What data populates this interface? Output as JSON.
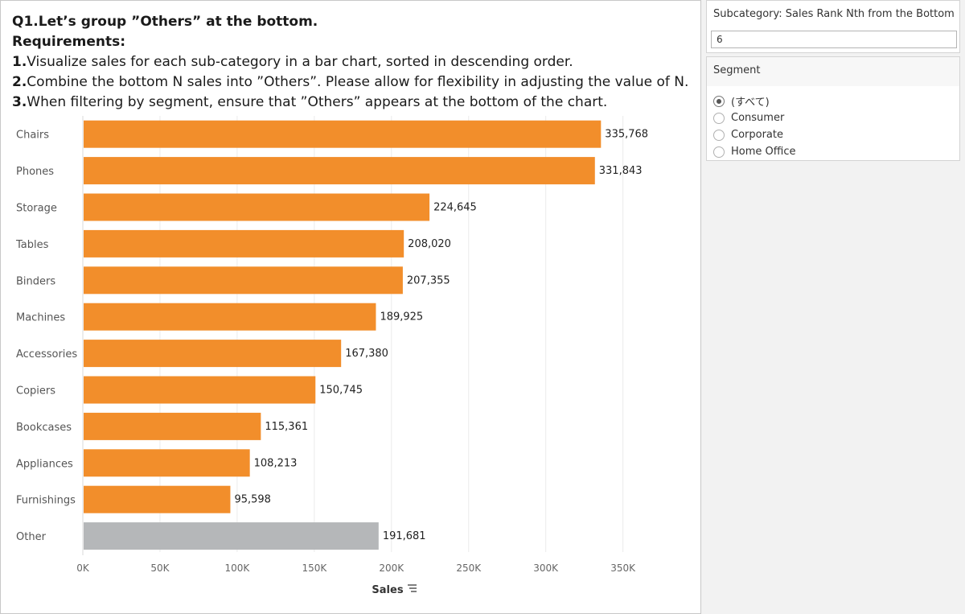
{
  "header": {
    "title": "Q1.Let’s group ”Others” at the bottom.",
    "requirements_label": "Requirements:",
    "items": [
      {
        "num": "1.",
        "text": "Visualize sales for each sub-category in a bar chart, sorted in descending order."
      },
      {
        "num": "2.",
        "text": "Combine the bottom N sales into ”Others”. Please allow for flexibility in adjusting the value of N."
      },
      {
        "num": "3.",
        "text": "When filtering by segment, ensure that ”Others” appears at the bottom of the chart."
      }
    ]
  },
  "controls": {
    "rank": {
      "title": "Subcategory: Sales Rank Nth from the Bottom",
      "value": "6"
    },
    "segment": {
      "title": "Segment",
      "options": [
        "(すべて)",
        "Consumer",
        "Corporate",
        "Home Office"
      ],
      "selected_index": 0
    }
  },
  "colors": {
    "bar": "#f28e2b",
    "other_bar": "#b5b7b9",
    "grid": "#ebebeb"
  },
  "chart_data": {
    "type": "bar",
    "orientation": "horizontal",
    "categories": [
      "Chairs",
      "Phones",
      "Storage",
      "Tables",
      "Binders",
      "Machines",
      "Accessories",
      "Copiers",
      "Bookcases",
      "Appliances",
      "Furnishings",
      "Other"
    ],
    "values": [
      335768,
      331843,
      224645,
      208020,
      207355,
      189925,
      167380,
      150745,
      115361,
      108213,
      95598,
      191681
    ],
    "value_labels": [
      "335,768",
      "331,843",
      "224,645",
      "208,020",
      "207,355",
      "189,925",
      "167,380",
      "150,745",
      "115,361",
      "108,213",
      "95,598",
      "191,681"
    ],
    "xlabel": "Sales",
    "sort_icon": "sort-descending-icon",
    "xlim": [
      0,
      370000
    ],
    "xticks": [
      0,
      50000,
      100000,
      150000,
      200000,
      250000,
      300000,
      350000
    ],
    "xtick_labels": [
      "0K",
      "50K",
      "100K",
      "150K",
      "200K",
      "250K",
      "300K",
      "350K"
    ],
    "grid": true
  }
}
